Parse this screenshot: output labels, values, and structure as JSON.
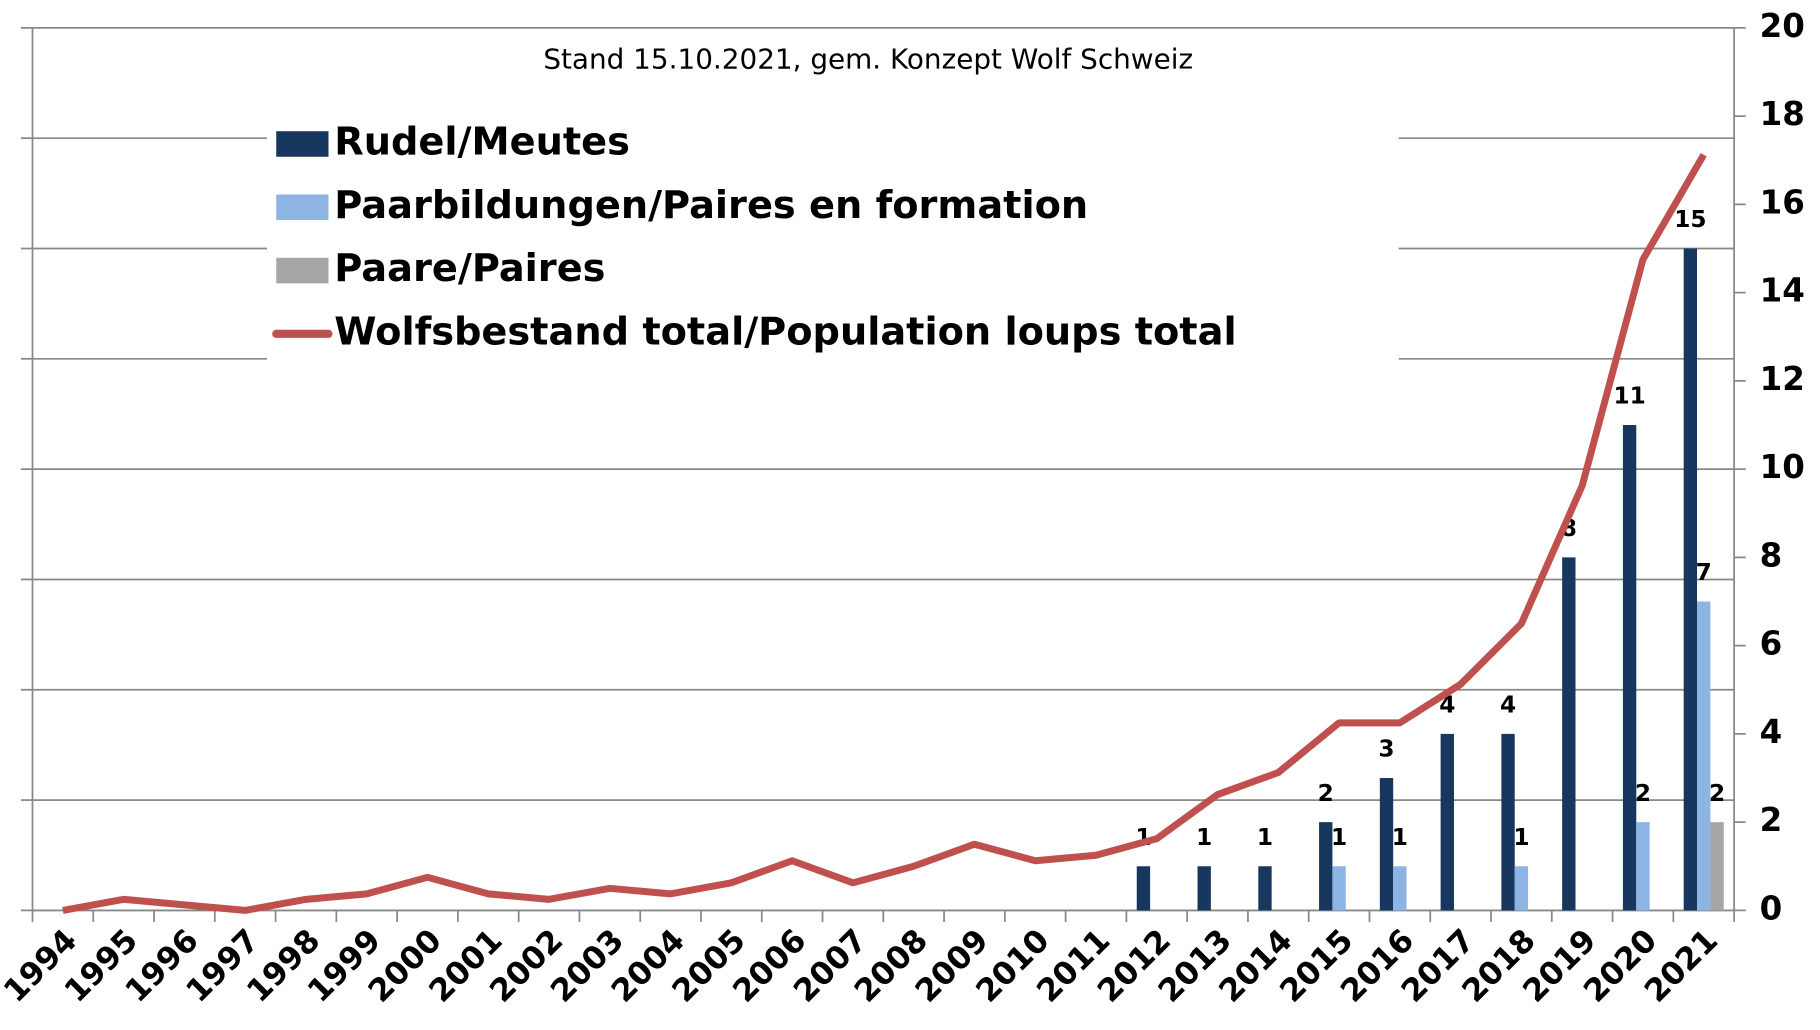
{
  "chart_data": {
    "type": "bar",
    "subtitle": "Stand 15.10.2021, gem. Konzept Wolf Schweiz",
    "categories": [
      "1994",
      "1995",
      "1996",
      "1997",
      "1998",
      "1999",
      "2000",
      "2001",
      "2002",
      "2003",
      "2004",
      "2005",
      "2006",
      "2007",
      "2008",
      "2009",
      "2010",
      "2011",
      "2012",
      "2013",
      "2014",
      "2015",
      "2016",
      "2017",
      "2018",
      "2019",
      "2020",
      "2021"
    ],
    "series": [
      {
        "name": "Rudel/Meutes",
        "type": "bar",
        "axis": "y2",
        "color": "#17375e",
        "values": [
          null,
          null,
          null,
          null,
          null,
          null,
          null,
          null,
          null,
          null,
          null,
          null,
          null,
          null,
          null,
          null,
          null,
          null,
          1,
          1,
          1,
          2,
          3,
          4,
          4,
          8,
          11,
          15
        ]
      },
      {
        "name": "Paarbildungen/Paires en formation",
        "type": "bar",
        "axis": "y2",
        "color": "#8db4e2",
        "values": [
          null,
          null,
          null,
          null,
          null,
          null,
          null,
          null,
          null,
          null,
          null,
          null,
          null,
          null,
          null,
          null,
          null,
          null,
          null,
          null,
          null,
          1,
          1,
          null,
          1,
          null,
          2,
          7
        ]
      },
      {
        "name": "Paare/Paires",
        "type": "bar",
        "axis": "y2",
        "color": "#a6a6a6",
        "values": [
          null,
          null,
          null,
          null,
          null,
          null,
          null,
          null,
          null,
          null,
          null,
          null,
          null,
          null,
          null,
          null,
          null,
          null,
          null,
          null,
          null,
          null,
          null,
          null,
          null,
          null,
          null,
          2
        ]
      },
      {
        "name": "Wolfsbestand total/Population loups total",
        "type": "line",
        "axis": "y",
        "color": "#c0504d",
        "values": [
          0,
          2,
          1,
          0,
          2,
          3,
          6,
          3,
          2,
          4,
          3,
          5,
          9,
          5,
          8,
          12,
          9,
          10,
          13,
          21,
          25,
          34,
          34,
          41,
          52,
          77,
          118,
          137
        ]
      }
    ],
    "ylim": [
      0,
      160
    ],
    "yticks": [
      0,
      20,
      40,
      60,
      80,
      100,
      120,
      140,
      160
    ],
    "ytick_labels": false,
    "y2lim": [
      0,
      20
    ],
    "y2ticks": [
      0,
      2,
      4,
      6,
      8,
      10,
      12,
      14,
      16,
      18,
      20
    ],
    "grid": true,
    "legend": "top-left"
  }
}
